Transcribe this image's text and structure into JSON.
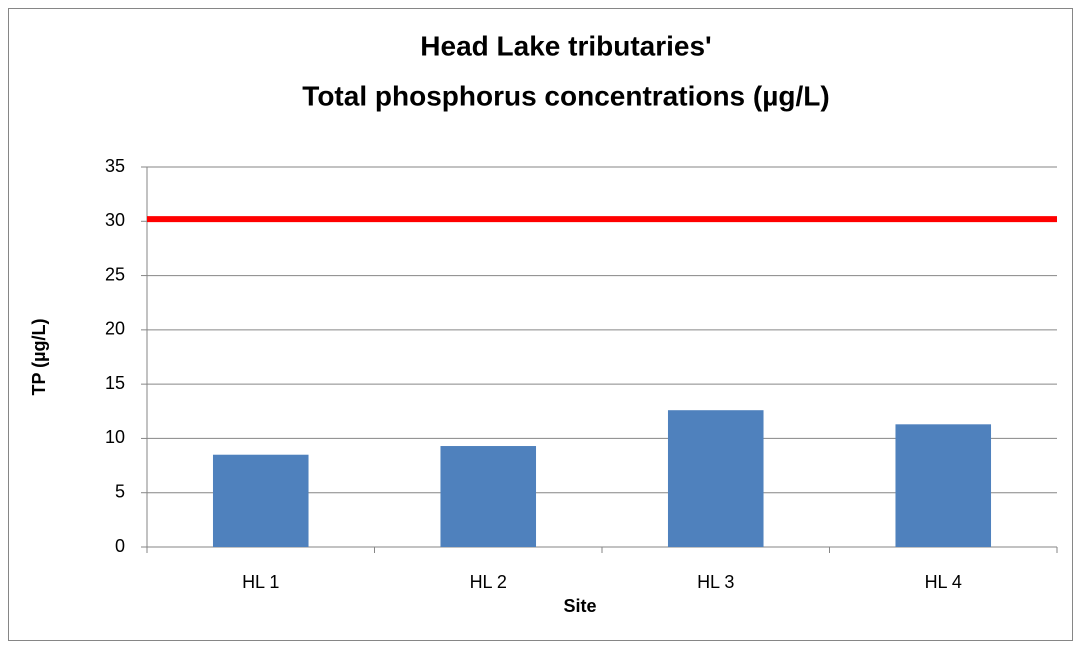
{
  "chart_data": {
    "type": "bar",
    "title": [
      "Head Lake tributaries'",
      "Total phosphorus concentrations (µg/L)"
    ],
    "x_label": "Site",
    "y_label": "TP (µg/L)",
    "categories": [
      "HL 1",
      "HL 2",
      "HL 3",
      "HL 4"
    ],
    "values": [
      8.5,
      9.3,
      12.6,
      11.3
    ],
    "color": "#4f81bd",
    "reference_line": {
      "value": 30.2,
      "color": "#ff0000"
    },
    "ylim": [
      0,
      35
    ],
    "yticks": [
      0,
      5,
      10,
      15,
      20,
      25,
      30,
      35
    ],
    "grid": true
  }
}
